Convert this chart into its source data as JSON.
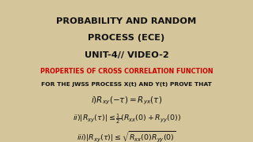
{
  "bg_color": "#d4c59a",
  "title_line1": "PROBABILITY AND RANDOM",
  "title_line2": "PROCESS (ECE)",
  "title_line3": "UNIT-4// VIDEO-2",
  "subtitle": "PROPERTIES OF CROSS CORRELATION FUNCTION",
  "subtitle_color": "#cc0000",
  "body_line1": "FOR THE JWSS PROCESS X(t) AND Y(t) PROVE THAT",
  "eq1": "$i)R_{xy}(-\\tau) = R_{yx}(\\tau)$",
  "eq2": "$ii)|R_{xy}(\\tau)| \\leq \\frac{1}{2}(R_{xx}(0) + R_{yy}(0))$",
  "eq3": "$iii)|R_{xy}(\\tau)| \\leq \\sqrt{R_{xx}(0)R_{yy}(0)}$",
  "title_color": "#111111",
  "body_color": "#111111",
  "eq_color": "#111111",
  "title_fontsize": 8.2,
  "subtitle_fontsize": 5.8,
  "body_fontsize": 5.4,
  "eq1_fontsize": 7.5,
  "eq2_fontsize": 6.8,
  "eq3_fontsize": 6.8
}
